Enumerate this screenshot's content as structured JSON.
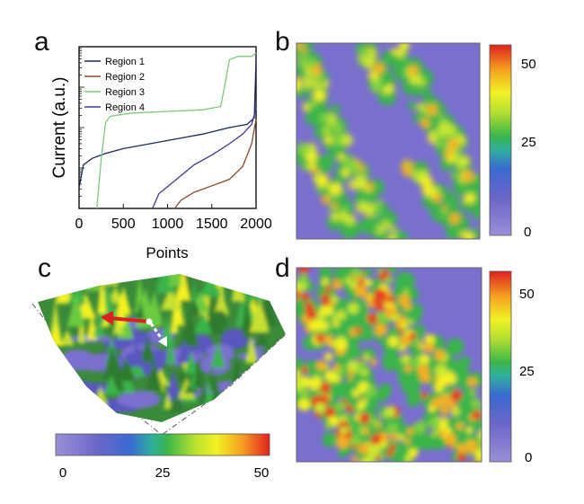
{
  "panels": {
    "a": {
      "label": "a"
    },
    "b": {
      "label": "b"
    },
    "c": {
      "label": "c"
    },
    "d": {
      "label": "d"
    }
  },
  "chart_data": [
    {
      "type": "line",
      "panel": "a",
      "title": "",
      "xlabel": "Points",
      "ylabel": "Current (a.u.)",
      "xlim": [
        0,
        2000
      ],
      "xticks": [
        "0",
        "500",
        "1000",
        "1500",
        "2000"
      ],
      "y_scale": "log",
      "legend_position": "top-left",
      "series": [
        {
          "name": "Region 1",
          "color": "#1f2a5a",
          "x": [
            0,
            50,
            150,
            300,
            500,
            800,
            1100,
            1400,
            1700,
            1900,
            1980,
            2000
          ],
          "y": [
            0.13,
            0.27,
            0.31,
            0.34,
            0.37,
            0.4,
            0.43,
            0.46,
            0.5,
            0.52,
            0.56,
            0.92
          ]
        },
        {
          "name": "Region 2",
          "color": "#8a4a2a",
          "x": [
            1080,
            1150,
            1300,
            1500,
            1700,
            1850,
            1950,
            2000
          ],
          "y": [
            0.0,
            0.05,
            0.1,
            0.14,
            0.18,
            0.26,
            0.4,
            0.55
          ]
        },
        {
          "name": "Region 3",
          "color": "#7ec87e",
          "x": [
            200,
            250,
            300,
            350,
            600,
            1000,
            1400,
            1600,
            1660,
            1700,
            1800,
            1950,
            2000
          ],
          "y": [
            0.0,
            0.3,
            0.53,
            0.57,
            0.59,
            0.6,
            0.61,
            0.63,
            0.8,
            0.92,
            0.94,
            0.94,
            0.96
          ]
        },
        {
          "name": "Region 4",
          "color": "#3a3a8a",
          "x": [
            830,
            900,
            1100,
            1300,
            1500,
            1700,
            1850,
            1950,
            2000
          ],
          "y": [
            0.0,
            0.09,
            0.18,
            0.27,
            0.33,
            0.4,
            0.46,
            0.52,
            0.62
          ]
        }
      ]
    },
    {
      "type": "heatmap",
      "panel": "b",
      "colorbar_ticks": [
        "50",
        "25",
        "0"
      ],
      "colorbar_range": [
        0,
        55
      ]
    },
    {
      "type": "heatmap",
      "panel": "c",
      "colorbar_ticks": [
        "0",
        "25",
        "50"
      ],
      "colorbar_range": [
        0,
        55
      ]
    },
    {
      "type": "heatmap",
      "panel": "d",
      "colorbar_ticks": [
        "50",
        "25",
        "0"
      ],
      "colorbar_range": [
        0,
        55
      ]
    }
  ],
  "colors": {
    "map_low": "#7a6fcf",
    "map_mid": "#3ab54a",
    "map_yellow": "#f2f224",
    "map_high": "#e02020"
  }
}
